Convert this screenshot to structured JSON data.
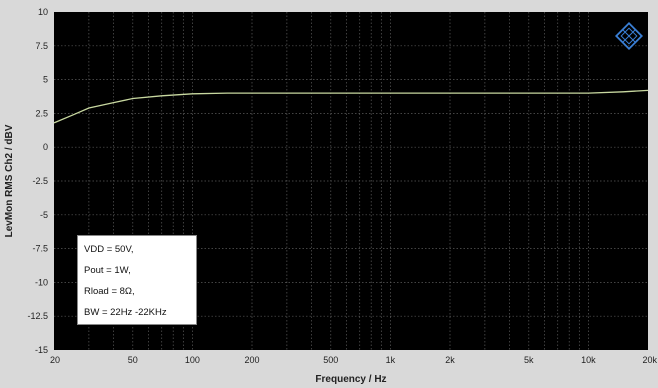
{
  "chart_data": {
    "type": "line",
    "title": "",
    "xlabel": "Frequency / Hz",
    "ylabel": "LevMon RMS Ch2 / dBV",
    "x_scale": "log",
    "xlim": [
      20,
      20000
    ],
    "ylim": [
      -15,
      10
    ],
    "x_ticks": [
      {
        "value": 20,
        "label": "20"
      },
      {
        "value": 50,
        "label": "50"
      },
      {
        "value": 100,
        "label": "100"
      },
      {
        "value": 200,
        "label": "200"
      },
      {
        "value": 500,
        "label": "500"
      },
      {
        "value": 1000,
        "label": "1k"
      },
      {
        "value": 2000,
        "label": "2k"
      },
      {
        "value": 5000,
        "label": "5k"
      },
      {
        "value": 10000,
        "label": "10k"
      },
      {
        "value": 20000,
        "label": "20k"
      }
    ],
    "y_ticks": [
      {
        "value": 10,
        "label": "10"
      },
      {
        "value": 7.5,
        "label": "7.5"
      },
      {
        "value": 5,
        "label": "5"
      },
      {
        "value": 2.5,
        "label": "2.5"
      },
      {
        "value": 0,
        "label": "0"
      },
      {
        "value": -2.5,
        "label": "-2.5"
      },
      {
        "value": -5,
        "label": "-5"
      },
      {
        "value": -7.5,
        "label": "-7.5"
      },
      {
        "value": -10,
        "label": "-10"
      },
      {
        "value": -12.5,
        "label": "-12.5"
      },
      {
        "value": -15,
        "label": "-15"
      }
    ],
    "grid": true,
    "series": [
      {
        "x": [
          20,
          25,
          30,
          40,
          50,
          70,
          100,
          150,
          200,
          500,
          1000,
          2000,
          5000,
          10000,
          15000,
          20000
        ],
        "y": [
          1.8,
          2.4,
          2.9,
          3.3,
          3.6,
          3.8,
          3.95,
          4.0,
          4.0,
          4.0,
          4.0,
          4.0,
          4.0,
          4.0,
          4.1,
          4.2
        ]
      }
    ],
    "annotation_lines": [
      "VDD = 50V,",
      "Pout = 1W,",
      "Rload = 8Ω,",
      "BW = 22Hz -22KHz"
    ]
  },
  "colors": {
    "plot_background": "#000000",
    "trace": "#c8d8a0",
    "grid": "#5a5a5a",
    "frame": "#d9d9d9",
    "logo": "#3a7fd5"
  },
  "logo": {
    "icon": "rohde-schwarz-diamond-icon"
  }
}
